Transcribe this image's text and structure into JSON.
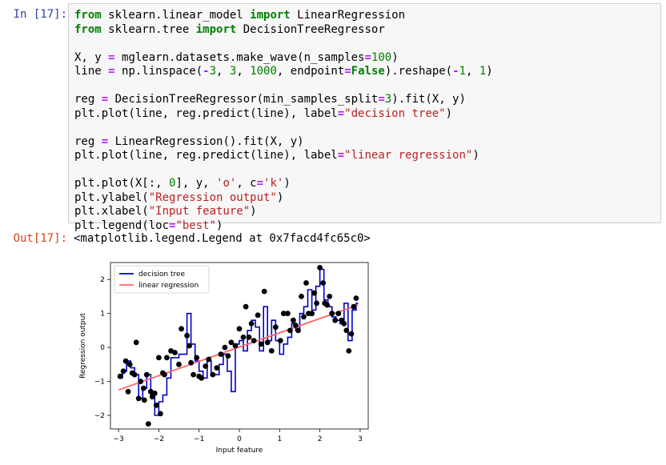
{
  "input_prompt": "In [17]:",
  "output_prompt": "Out[17]:",
  "code_lines": [
    [
      [
        "kw",
        "from"
      ],
      [
        "p",
        " sklearn.linear_model "
      ],
      [
        "kw",
        "import"
      ],
      [
        "p",
        " LinearRegression"
      ]
    ],
    [
      [
        "kw",
        "from"
      ],
      [
        "p",
        " sklearn.tree "
      ],
      [
        "kw",
        "import"
      ],
      [
        "p",
        " DecisionTreeRegressor"
      ]
    ],
    [
      [
        "p",
        ""
      ]
    ],
    [
      [
        "p",
        "X, y "
      ],
      [
        "op",
        "="
      ],
      [
        "p",
        " mglearn.datasets.make_wave(n_samples"
      ],
      [
        "op",
        "="
      ],
      [
        "num",
        "100"
      ],
      [
        "p",
        ")"
      ]
    ],
    [
      [
        "p",
        "line "
      ],
      [
        "op",
        "="
      ],
      [
        "p",
        " np.linspace("
      ],
      [
        "op",
        "-"
      ],
      [
        "num",
        "3"
      ],
      [
        "p",
        ", "
      ],
      [
        "num",
        "3"
      ],
      [
        "p",
        ", "
      ],
      [
        "num",
        "1000"
      ],
      [
        "p",
        ", endpoint"
      ],
      [
        "op",
        "="
      ],
      [
        "kw",
        "False"
      ],
      [
        "p",
        ").reshape("
      ],
      [
        "op",
        "-"
      ],
      [
        "num",
        "1"
      ],
      [
        "p",
        ", "
      ],
      [
        "num",
        "1"
      ],
      [
        "p",
        ")"
      ]
    ],
    [
      [
        "p",
        ""
      ]
    ],
    [
      [
        "p",
        "reg "
      ],
      [
        "op",
        "="
      ],
      [
        "p",
        " DecisionTreeRegressor(min_samples_split"
      ],
      [
        "op",
        "="
      ],
      [
        "num",
        "3"
      ],
      [
        "p",
        ").fit(X, y)"
      ]
    ],
    [
      [
        "p",
        "plt.plot(line, reg.predict(line), label"
      ],
      [
        "op",
        "="
      ],
      [
        "str",
        "\"decision tree\""
      ],
      [
        "p",
        ")"
      ]
    ],
    [
      [
        "p",
        ""
      ]
    ],
    [
      [
        "p",
        "reg "
      ],
      [
        "op",
        "="
      ],
      [
        "p",
        " LinearRegression().fit(X, y)"
      ]
    ],
    [
      [
        "p",
        "plt.plot(line, reg.predict(line), label"
      ],
      [
        "op",
        "="
      ],
      [
        "str",
        "\"linear regression\""
      ],
      [
        "p",
        ")"
      ]
    ],
    [
      [
        "p",
        ""
      ]
    ],
    [
      [
        "p",
        "plt.plot(X[:, "
      ],
      [
        "num",
        "0"
      ],
      [
        "p",
        "], y, "
      ],
      [
        "str",
        "'o'"
      ],
      [
        "p",
        ", c"
      ],
      [
        "op",
        "="
      ],
      [
        "str",
        "'k'"
      ],
      [
        "p",
        ")"
      ]
    ],
    [
      [
        "p",
        "plt.ylabel("
      ],
      [
        "str",
        "\"Regression output\""
      ],
      [
        "p",
        ")"
      ]
    ],
    [
      [
        "p",
        "plt.xlabel("
      ],
      [
        "str",
        "\"Input feature\""
      ],
      [
        "p",
        ")"
      ]
    ],
    [
      [
        "p",
        "plt.legend(loc"
      ],
      [
        "op",
        "="
      ],
      [
        "str",
        "\"best\""
      ],
      [
        "p",
        ")"
      ]
    ]
  ],
  "output_text": "<matplotlib.legend.Legend at 0x7facd4fc65c0>",
  "chart_data": {
    "type": "line",
    "xlabel": "Input feature",
    "ylabel": "Regression output",
    "xlim": [
      -3.2,
      3.2
    ],
    "ylim": [
      -2.4,
      2.5
    ],
    "xticks": [
      -3,
      -2,
      -1,
      0,
      1,
      2,
      3
    ],
    "xtick_labels": [
      "−3",
      "−2",
      "−1",
      "0",
      "1",
      "2",
      "3"
    ],
    "yticks": [
      -2,
      -1,
      0,
      1,
      2
    ],
    "ytick_labels": [
      "−2",
      "−1",
      "0",
      "1",
      "2"
    ],
    "grid": false,
    "legend_position": "top-left",
    "series": [
      {
        "name": "decision tree",
        "type": "step",
        "color": "#0000cc",
        "x": [
          -3.0,
          -2.9,
          -2.8,
          -2.7,
          -2.6,
          -2.5,
          -2.4,
          -2.3,
          -2.2,
          -2.1,
          -2.0,
          -1.9,
          -1.8,
          -1.7,
          -1.5,
          -1.3,
          -1.2,
          -1.1,
          -1.0,
          -0.9,
          -0.8,
          -0.7,
          -0.5,
          -0.4,
          -0.3,
          -0.2,
          -0.1,
          0.0,
          0.1,
          0.2,
          0.3,
          0.4,
          0.5,
          0.6,
          0.7,
          0.8,
          0.9,
          1.0,
          1.1,
          1.2,
          1.3,
          1.4,
          1.5,
          1.6,
          1.7,
          1.8,
          1.9,
          2.0,
          2.1,
          2.2,
          2.3,
          2.4,
          2.5,
          2.6,
          2.7,
          2.8,
          2.9
        ],
        "y": [
          -0.9,
          -0.7,
          -0.4,
          -0.6,
          -0.8,
          -1.5,
          -1.2,
          -0.8,
          -1.4,
          -2.0,
          -1.6,
          -1.4,
          -0.9,
          -0.3,
          -0.2,
          1.0,
          0.1,
          -0.4,
          -0.7,
          -0.9,
          -0.4,
          -0.8,
          -0.5,
          -0.2,
          -0.7,
          -1.3,
          0.1,
          0.2,
          -0.1,
          0.5,
          0.8,
          0.6,
          -0.1,
          1.2,
          0.2,
          0.8,
          0.2,
          -0.2,
          0.1,
          0.3,
          0.7,
          0.5,
          1.0,
          1.2,
          1.7,
          1.1,
          1.8,
          2.3,
          1.4,
          1.2,
          0.9,
          0.8,
          0.7,
          1.3,
          0.2,
          1.1,
          1.3
        ]
      },
      {
        "name": "linear regression",
        "type": "line",
        "color": "#ff6666",
        "x": [
          -3.0,
          2.95
        ],
        "y": [
          -1.25,
          1.25
        ]
      }
    ],
    "points": {
      "color": "#000000",
      "x": [
        -2.96,
        -2.88,
        -2.82,
        -2.76,
        -2.72,
        -2.66,
        -2.6,
        -2.56,
        -2.5,
        -2.45,
        -2.38,
        -2.36,
        -2.3,
        -2.26,
        -2.2,
        -2.16,
        -2.1,
        -2.06,
        -2.0,
        -1.96,
        -1.9,
        -1.86,
        -1.8,
        -1.7,
        -1.6,
        -1.5,
        -1.44,
        -1.3,
        -1.24,
        -1.2,
        -1.14,
        -1.06,
        -1.0,
        -0.94,
        -0.84,
        -0.76,
        -0.66,
        -0.56,
        -0.46,
        -0.36,
        -0.28,
        -0.2,
        -0.1,
        0.0,
        0.1,
        0.16,
        0.24,
        0.3,
        0.36,
        0.46,
        0.54,
        0.62,
        0.7,
        0.8,
        0.9,
        1.02,
        1.1,
        1.2,
        1.26,
        1.34,
        1.4,
        1.46,
        1.54,
        1.6,
        1.66,
        1.72,
        1.8,
        1.86,
        1.92,
        2.0,
        2.08,
        2.12,
        2.18,
        2.24,
        2.3,
        2.38,
        2.46,
        2.54,
        2.6,
        2.66,
        2.72,
        2.78,
        2.84,
        2.9
      ],
      "y": [
        -0.85,
        -0.7,
        -0.4,
        -1.3,
        -0.5,
        -0.75,
        -0.8,
        0.15,
        -1.5,
        -1.0,
        -1.2,
        -1.55,
        -0.8,
        -2.25,
        -1.3,
        -1.45,
        -1.35,
        -1.7,
        -0.3,
        -1.95,
        -0.75,
        -0.8,
        -0.3,
        -0.1,
        -0.15,
        -0.5,
        0.55,
        0.35,
        0.05,
        -0.45,
        -0.8,
        -0.3,
        -0.85,
        -0.9,
        -0.55,
        -0.35,
        -0.8,
        -0.6,
        -0.2,
        0.0,
        -0.25,
        0.15,
        0.05,
        0.55,
        0.3,
        1.2,
        0.3,
        0.7,
        0.2,
        0.95,
        0.1,
        1.65,
        0.15,
        -0.1,
        0.6,
        0.2,
        1.0,
        1.0,
        0.5,
        0.8,
        0.65,
        0.5,
        1.5,
        0.9,
        1.9,
        1.0,
        1.0,
        1.6,
        1.3,
        2.35,
        1.9,
        1.3,
        1.25,
        1.5,
        1.0,
        0.8,
        1.0,
        0.8,
        0.7,
        0.5,
        -0.1,
        0.4,
        1.2,
        1.45
      ]
    }
  }
}
